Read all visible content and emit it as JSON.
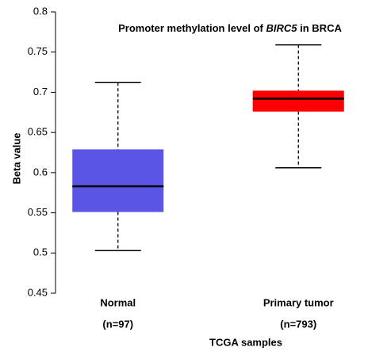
{
  "chart_data": {
    "type": "box",
    "title_parts": [
      "Promoter methylation level of ",
      "BIRC5",
      " in BRCA"
    ],
    "x_label": "TCGA samples",
    "y_label": "Beta value",
    "categories": [
      "Normal",
      "Primary tumor"
    ],
    "sample_labels": [
      "(n=97)",
      "(n=793)"
    ],
    "boxes": [
      {
        "color": "#5b55e6",
        "min": 0.503,
        "q1": 0.551,
        "median": 0.583,
        "q3": 0.629,
        "max": 0.712
      },
      {
        "color": "#ff0000",
        "min": 0.606,
        "q1": 0.676,
        "median": 0.692,
        "q3": 0.702,
        "max": 0.759
      }
    ],
    "ylim": [
      0.45,
      0.8
    ],
    "yticks": [
      0.45,
      0.5,
      0.55,
      0.6,
      0.65,
      0.7,
      0.75,
      0.8
    ]
  }
}
